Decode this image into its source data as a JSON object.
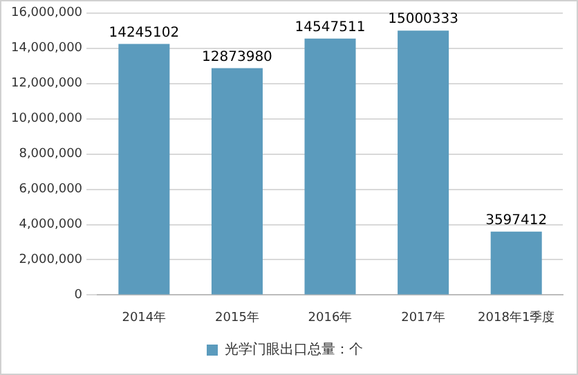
{
  "chart_data": {
    "type": "bar",
    "categories": [
      "2014年",
      "2015年",
      "2016年",
      "2017年",
      "2018年1季度"
    ],
    "series": [
      {
        "name": "光学门眼出口总量：个",
        "color": "#5b9bbd",
        "values": [
          14245102,
          12873980,
          14547511,
          15000333,
          3597412
        ]
      }
    ],
    "ylim": [
      0,
      16000000
    ],
    "yticks": [
      {
        "value": 0,
        "label": "0"
      },
      {
        "value": 2000000,
        "label": "2,000,000"
      },
      {
        "value": 4000000,
        "label": "4,000,000"
      },
      {
        "value": 6000000,
        "label": "6,000,000"
      },
      {
        "value": 8000000,
        "label": "8,000,000"
      },
      {
        "value": 10000000,
        "label": "10,000,000"
      },
      {
        "value": 12000000,
        "label": "12,000,000"
      },
      {
        "value": 14000000,
        "label": "14,000,000"
      },
      {
        "value": 16000000,
        "label": "16,000,000"
      }
    ],
    "grid": "y",
    "legend": "bottom",
    "data_labels": true
  }
}
